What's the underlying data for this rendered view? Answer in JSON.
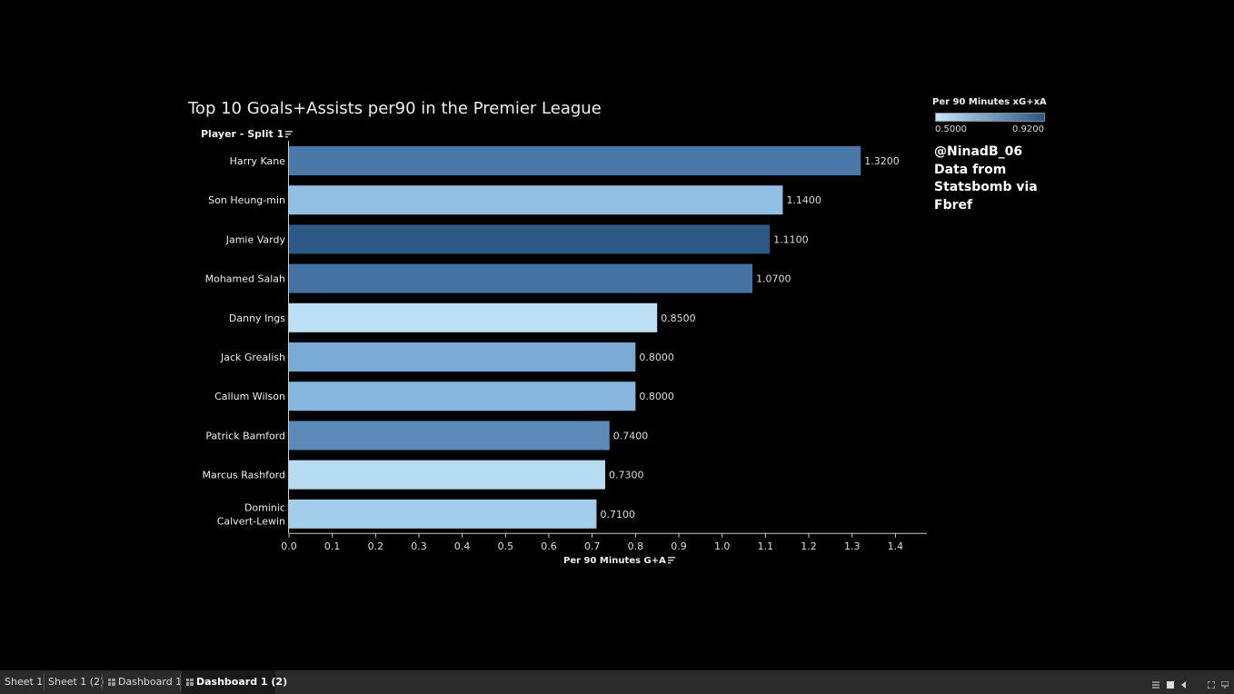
{
  "chart_data": {
    "type": "bar",
    "orientation": "horizontal",
    "title": "Top 10 Goals+Assists per90 in the Premier League",
    "row_header": "Player - Split 1",
    "xlabel": "Per 90 Minutes G+A",
    "xlim": [
      0,
      1.45
    ],
    "xticks": [
      "0.0",
      "0.1",
      "0.2",
      "0.3",
      "0.4",
      "0.5",
      "0.6",
      "0.7",
      "0.8",
      "0.9",
      "1.0",
      "1.1",
      "1.2",
      "1.3",
      "1.4"
    ],
    "categories": [
      [
        "Harry Kane"
      ],
      [
        "Son Heung-min"
      ],
      [
        "Jamie Vardy"
      ],
      [
        "Mohamed Salah"
      ],
      [
        "Danny Ings"
      ],
      [
        "Jack Grealish"
      ],
      [
        "Callum Wilson"
      ],
      [
        "Patrick Bamford"
      ],
      [
        "Marcus Rashford"
      ],
      [
        "Dominic",
        "Calvert-Lewin"
      ]
    ],
    "values": [
      1.32,
      1.14,
      1.11,
      1.07,
      0.85,
      0.8,
      0.8,
      0.74,
      0.73,
      0.71
    ],
    "value_labels": [
      "1.3200",
      "1.1400",
      "1.1100",
      "1.0700",
      "0.8500",
      "0.8000",
      "0.8000",
      "0.7400",
      "0.7300",
      "0.7100"
    ],
    "bar_colors": [
      "#4a78a8",
      "#92c0e2",
      "#2c5886",
      "#4473a3",
      "#bde0f4",
      "#78aad4",
      "#86b8de",
      "#5b8ab8",
      "#b7dcf2",
      "#a3cdea"
    ],
    "grid": false,
    "color_legend": {
      "title": "Per 90 Minutes xG+xA",
      "min_label": "0.5000",
      "max_label": "0.9200",
      "min_color": "#c6e5f7",
      "max_color": "#2c5886",
      "placement": "top-right"
    }
  },
  "credit": [
    "@NinadB_06",
    "Data from",
    "Statsbomb via",
    "Fbref"
  ],
  "tabs": [
    {
      "label": "Sheet 1",
      "active": false
    },
    {
      "label": "Sheet 1 (2)",
      "active": false
    },
    {
      "label": "Dashboard 1",
      "active": false
    },
    {
      "label": "Dashboard 1 (2)",
      "active": true
    }
  ]
}
